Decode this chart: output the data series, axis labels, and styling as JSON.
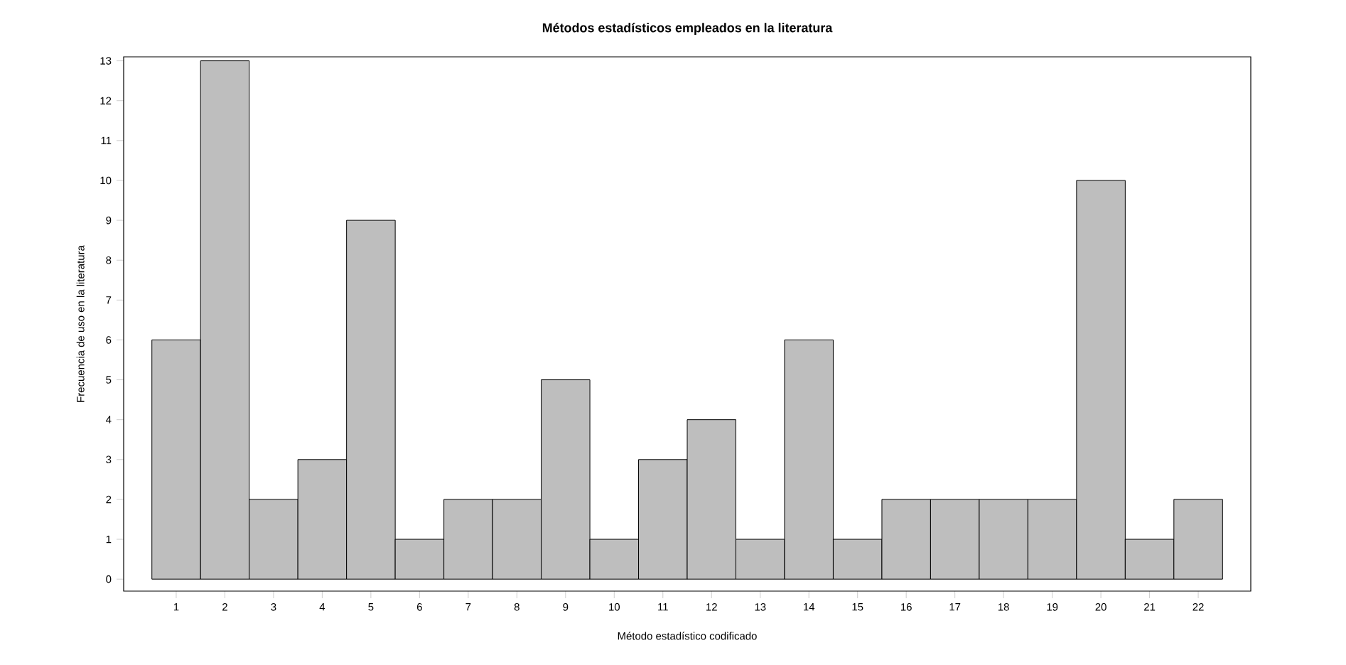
{
  "chart_data": {
    "type": "bar",
    "title": "Métodos estadísticos empleados en la literatura",
    "xlabel": "Método estadístico codificado",
    "ylabel": "Frecuencia de uso en la literatura",
    "categories": [
      "1",
      "2",
      "3",
      "4",
      "5",
      "6",
      "7",
      "8",
      "9",
      "10",
      "11",
      "12",
      "13",
      "14",
      "15",
      "16",
      "17",
      "18",
      "19",
      "20",
      "21",
      "22"
    ],
    "values": [
      6,
      13,
      2,
      3,
      9,
      1,
      2,
      2,
      5,
      1,
      3,
      4,
      1,
      6,
      1,
      2,
      2,
      2,
      2,
      10,
      1,
      2
    ],
    "color": "#bebebe",
    "ylim": [
      -0.3,
      13.1
    ],
    "yticks": [
      0,
      1,
      2,
      3,
      4,
      5,
      6,
      7,
      8,
      9,
      10,
      11,
      12,
      13
    ],
    "grid": false
  }
}
